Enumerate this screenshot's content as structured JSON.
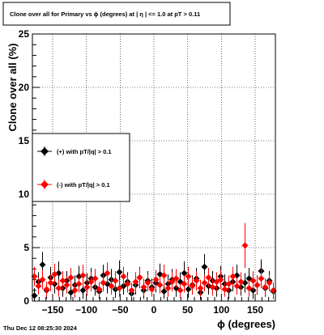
{
  "chart_data": {
    "type": "scatter",
    "title": "Clone  over all for Primary vs ϕ (degrees) at |  η  | <= 1.0 at pT > 0.11",
    "xlabel": "ϕ (degrees)",
    "ylabel": "Clone  over all (%)",
    "xlim": [
      -180,
      180
    ],
    "ylim": [
      0,
      25
    ],
    "x_ticks": [
      -150,
      -100,
      -50,
      0,
      50,
      100,
      150
    ],
    "x_tick_labels": [
      "−150",
      "−100",
      "−50",
      "0",
      "50",
      "100",
      "150"
    ],
    "y_ticks": [
      0,
      5,
      10,
      15,
      20,
      25
    ],
    "y_tick_labels": [
      "0",
      "5",
      "10",
      "15",
      "20",
      "25"
    ],
    "grid": true,
    "legend_placement": "middle-left",
    "colors": {
      "positive": "#000000",
      "negative": "#ff0000"
    },
    "series": [
      {
        "name": "(+) with pT/|q| > 0.1",
        "color": "#000000",
        "x": [
          -177,
          -171,
          -165,
          -159,
          -153,
          -147,
          -141,
          -135,
          -129,
          -123,
          -117,
          -111,
          -105,
          -99,
          -93,
          -87,
          -81,
          -75,
          -69,
          -63,
          -57,
          -51,
          -45,
          -39,
          -33,
          -27,
          -21,
          -15,
          -9,
          -3,
          3,
          9,
          15,
          21,
          27,
          33,
          39,
          45,
          51,
          57,
          63,
          69,
          75,
          81,
          87,
          93,
          99,
          105,
          111,
          117,
          123,
          129,
          135,
          141,
          147,
          153,
          159,
          165,
          171,
          177
        ],
        "y": [
          0.5,
          1.8,
          3.4,
          1.0,
          2.2,
          1.6,
          2.6,
          1.2,
          1.9,
          0.8,
          1.5,
          2.3,
          1.0,
          1.7,
          2.1,
          1.3,
          0.9,
          2.4,
          1.6,
          2.0,
          1.1,
          2.7,
          1.4,
          1.8,
          0.7,
          1.5,
          2.2,
          1.0,
          1.9,
          1.3,
          1.7,
          2.5,
          0.9,
          1.6,
          2.0,
          1.2,
          1.8,
          2.6,
          1.1,
          1.5,
          2.1,
          0.8,
          3.2,
          1.4,
          1.9,
          1.2,
          2.3,
          1.6,
          1.0,
          1.8,
          2.4,
          1.3,
          1.7,
          2.1,
          1.0,
          1.5,
          2.8,
          1.2,
          1.9,
          0.9
        ],
        "err": [
          0.7,
          0.9,
          1.2,
          0.8,
          1.0,
          0.9,
          1.1,
          0.8,
          0.9,
          0.7,
          0.9,
          1.0,
          0.8,
          0.9,
          1.0,
          0.8,
          0.7,
          1.0,
          0.9,
          1.0,
          0.8,
          1.1,
          0.8,
          0.9,
          0.7,
          0.9,
          1.0,
          0.8,
          0.9,
          0.8,
          0.9,
          1.0,
          0.7,
          0.9,
          1.0,
          0.8,
          0.9,
          1.1,
          0.8,
          0.9,
          1.0,
          0.7,
          1.2,
          0.8,
          0.9,
          0.8,
          1.0,
          0.9,
          0.8,
          0.9,
          1.0,
          0.8,
          0.9,
          1.0,
          0.8,
          0.9,
          1.1,
          0.8,
          0.9,
          0.7
        ]
      },
      {
        "name": "(-) with pT/|q| > 0.1",
        "color": "#ff0000",
        "x": [
          -177,
          -171,
          -165,
          -159,
          -153,
          -147,
          -141,
          -135,
          -129,
          -123,
          -117,
          -111,
          -105,
          -99,
          -93,
          -87,
          -81,
          -75,
          -69,
          -63,
          -57,
          -51,
          -45,
          -39,
          -33,
          -27,
          -21,
          -15,
          -9,
          -3,
          3,
          9,
          15,
          21,
          27,
          33,
          39,
          45,
          51,
          57,
          63,
          69,
          75,
          81,
          87,
          93,
          99,
          105,
          111,
          117,
          123,
          129,
          135,
          141,
          147,
          153,
          159,
          165,
          171,
          177
        ],
        "y": [
          2.3,
          1.4,
          2.0,
          1.1,
          1.7,
          2.5,
          1.2,
          1.9,
          1.5,
          2.2,
          1.0,
          1.6,
          2.4,
          1.3,
          1.8,
          2.1,
          1.1,
          1.7,
          2.6,
          1.4,
          1.9,
          1.2,
          2.3,
          1.6,
          1.0,
          1.8,
          2.2,
          1.3,
          1.7,
          1.1,
          2.0,
          1.5,
          2.4,
          1.2,
          1.8,
          2.1,
          1.0,
          1.6,
          2.3,
          1.4,
          1.9,
          1.2,
          1.7,
          2.2,
          1.3,
          1.8,
          2.0,
          1.1,
          1.6,
          2.3,
          1.4,
          1.8,
          5.2,
          1.2,
          1.9,
          1.5,
          2.1,
          1.3,
          1.7,
          1.0
        ],
        "err": [
          0.9,
          0.8,
          0.9,
          0.7,
          0.8,
          1.0,
          0.8,
          0.9,
          0.8,
          0.9,
          0.7,
          0.8,
          1.0,
          0.8,
          0.9,
          0.9,
          0.7,
          0.8,
          1.0,
          0.8,
          0.9,
          0.8,
          0.9,
          0.8,
          0.7,
          0.9,
          0.9,
          0.8,
          0.8,
          0.7,
          0.9,
          0.8,
          1.0,
          0.8,
          0.9,
          0.9,
          0.7,
          0.8,
          0.9,
          0.8,
          0.9,
          0.8,
          0.8,
          0.9,
          0.8,
          0.9,
          0.9,
          0.7,
          0.8,
          0.9,
          0.8,
          0.9,
          2.1,
          0.8,
          0.9,
          0.8,
          0.9,
          0.8,
          0.8,
          0.7
        ]
      }
    ]
  },
  "footer": {
    "timestamp": "Thu Dec 12 08:25:30 2024"
  }
}
